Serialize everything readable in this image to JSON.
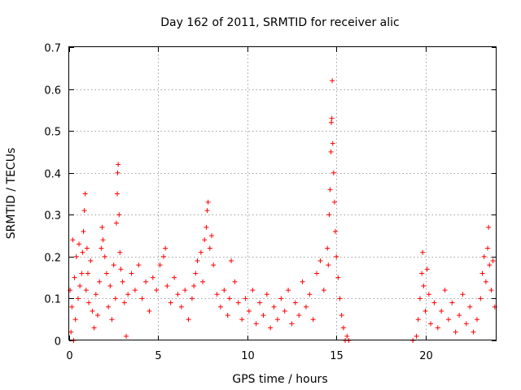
{
  "chart_data": {
    "type": "scatter",
    "title": "Day 162 of 2011, SRMTID for receiver alic",
    "xlabel": "GPS time / hours",
    "ylabel": "SRMTID / TECUs",
    "xlim": [
      0,
      24
    ],
    "ylim": [
      0,
      0.7
    ],
    "xticks": [
      0,
      5,
      10,
      15,
      20
    ],
    "yticks": [
      0,
      0.1,
      0.2,
      0.3,
      0.4,
      0.5,
      0.6,
      0.7
    ],
    "xtick_labels": [
      "0",
      "5",
      "10",
      "15",
      "20"
    ],
    "ytick_labels": [
      "0",
      "0.1",
      "0.2",
      "0.3",
      "0.4",
      "0.5",
      "0.6",
      "0.7"
    ],
    "grid": true,
    "marker": "+",
    "color": "#ff0000",
    "series": [
      {
        "name": "SRMTID",
        "points": [
          [
            0.05,
            0.12
          ],
          [
            0.1,
            0.02
          ],
          [
            0.15,
            0.08
          ],
          [
            0.2,
            0.24
          ],
          [
            0.25,
            0.0
          ],
          [
            0.3,
            0.15
          ],
          [
            0.35,
            0.05
          ],
          [
            0.4,
            0.2
          ],
          [
            0.5,
            0.1
          ],
          [
            0.55,
            0.23
          ],
          [
            0.6,
            0.13
          ],
          [
            0.7,
            0.16
          ],
          [
            0.75,
            0.21
          ],
          [
            0.8,
            0.26
          ],
          [
            0.85,
            0.31
          ],
          [
            0.9,
            0.35
          ],
          [
            0.95,
            0.12
          ],
          [
            1.0,
            0.22
          ],
          [
            1.05,
            0.16
          ],
          [
            1.1,
            0.09
          ],
          [
            1.2,
            0.19
          ],
          [
            1.3,
            0.07
          ],
          [
            1.4,
            0.03
          ],
          [
            1.5,
            0.11
          ],
          [
            1.6,
            0.06
          ],
          [
            1.7,
            0.14
          ],
          [
            1.8,
            0.22
          ],
          [
            1.85,
            0.27
          ],
          [
            1.9,
            0.24
          ],
          [
            2.0,
            0.2
          ],
          [
            2.1,
            0.16
          ],
          [
            2.2,
            0.08
          ],
          [
            2.3,
            0.13
          ],
          [
            2.4,
            0.05
          ],
          [
            2.5,
            0.18
          ],
          [
            2.6,
            0.1
          ],
          [
            2.65,
            0.28
          ],
          [
            2.7,
            0.35
          ],
          [
            2.72,
            0.4
          ],
          [
            2.75,
            0.42
          ],
          [
            2.8,
            0.3
          ],
          [
            2.85,
            0.21
          ],
          [
            2.9,
            0.17
          ],
          [
            3.0,
            0.14
          ],
          [
            3.1,
            0.09
          ],
          [
            3.2,
            0.01
          ],
          [
            3.3,
            0.11
          ],
          [
            3.5,
            0.16
          ],
          [
            3.7,
            0.12
          ],
          [
            3.9,
            0.18
          ],
          [
            4.1,
            0.1
          ],
          [
            4.3,
            0.14
          ],
          [
            4.5,
            0.07
          ],
          [
            4.7,
            0.15
          ],
          [
            4.9,
            0.12
          ],
          [
            5.1,
            0.18
          ],
          [
            5.3,
            0.2
          ],
          [
            5.4,
            0.22
          ],
          [
            5.5,
            0.13
          ],
          [
            5.7,
            0.09
          ],
          [
            5.9,
            0.15
          ],
          [
            6.1,
            0.11
          ],
          [
            6.3,
            0.08
          ],
          [
            6.5,
            0.12
          ],
          [
            6.7,
            0.05
          ],
          [
            6.9,
            0.1
          ],
          [
            7.0,
            0.13
          ],
          [
            7.1,
            0.16
          ],
          [
            7.2,
            0.19
          ],
          [
            7.4,
            0.21
          ],
          [
            7.5,
            0.14
          ],
          [
            7.6,
            0.24
          ],
          [
            7.7,
            0.27
          ],
          [
            7.75,
            0.31
          ],
          [
            7.8,
            0.33
          ],
          [
            7.9,
            0.22
          ],
          [
            8.0,
            0.25
          ],
          [
            8.1,
            0.18
          ],
          [
            8.3,
            0.11
          ],
          [
            8.5,
            0.08
          ],
          [
            8.7,
            0.12
          ],
          [
            8.9,
            0.06
          ],
          [
            9.0,
            0.1
          ],
          [
            9.1,
            0.19
          ],
          [
            9.3,
            0.14
          ],
          [
            9.5,
            0.09
          ],
          [
            9.7,
            0.05
          ],
          [
            9.9,
            0.1
          ],
          [
            10.1,
            0.07
          ],
          [
            10.3,
            0.12
          ],
          [
            10.5,
            0.04
          ],
          [
            10.7,
            0.09
          ],
          [
            10.9,
            0.06
          ],
          [
            11.1,
            0.11
          ],
          [
            11.3,
            0.03
          ],
          [
            11.5,
            0.08
          ],
          [
            11.7,
            0.05
          ],
          [
            11.9,
            0.1
          ],
          [
            12.1,
            0.07
          ],
          [
            12.3,
            0.12
          ],
          [
            12.5,
            0.04
          ],
          [
            12.7,
            0.09
          ],
          [
            12.9,
            0.06
          ],
          [
            13.1,
            0.14
          ],
          [
            13.3,
            0.08
          ],
          [
            13.5,
            0.11
          ],
          [
            13.7,
            0.05
          ],
          [
            13.9,
            0.16
          ],
          [
            14.1,
            0.19
          ],
          [
            14.3,
            0.12
          ],
          [
            14.5,
            0.22
          ],
          [
            14.55,
            0.18
          ],
          [
            14.6,
            0.3
          ],
          [
            14.65,
            0.36
          ],
          [
            14.7,
            0.45
          ],
          [
            14.72,
            0.52
          ],
          [
            14.75,
            0.53
          ],
          [
            14.77,
            0.62
          ],
          [
            14.8,
            0.47
          ],
          [
            14.85,
            0.4
          ],
          [
            14.9,
            0.33
          ],
          [
            14.95,
            0.26
          ],
          [
            15.0,
            0.2
          ],
          [
            15.1,
            0.15
          ],
          [
            15.2,
            0.1
          ],
          [
            15.3,
            0.06
          ],
          [
            15.4,
            0.03
          ],
          [
            15.5,
            0.0
          ],
          [
            15.6,
            0.01
          ],
          [
            15.7,
            0.0
          ],
          [
            19.3,
            0.0
          ],
          [
            19.5,
            0.01
          ],
          [
            19.6,
            0.05
          ],
          [
            19.7,
            0.1
          ],
          [
            19.8,
            0.16
          ],
          [
            19.85,
            0.21
          ],
          [
            19.9,
            0.13
          ],
          [
            20.0,
            0.07
          ],
          [
            20.1,
            0.17
          ],
          [
            20.2,
            0.11
          ],
          [
            20.3,
            0.04
          ],
          [
            20.5,
            0.09
          ],
          [
            20.7,
            0.03
          ],
          [
            20.9,
            0.07
          ],
          [
            21.1,
            0.12
          ],
          [
            21.3,
            0.05
          ],
          [
            21.5,
            0.09
          ],
          [
            21.7,
            0.02
          ],
          [
            21.9,
            0.06
          ],
          [
            22.1,
            0.11
          ],
          [
            22.3,
            0.04
          ],
          [
            22.5,
            0.08
          ],
          [
            22.7,
            0.02
          ],
          [
            22.9,
            0.05
          ],
          [
            23.1,
            0.1
          ],
          [
            23.2,
            0.16
          ],
          [
            23.3,
            0.2
          ],
          [
            23.4,
            0.14
          ],
          [
            23.5,
            0.22
          ],
          [
            23.55,
            0.27
          ],
          [
            23.6,
            0.18
          ],
          [
            23.7,
            0.12
          ],
          [
            23.8,
            0.19
          ],
          [
            23.9,
            0.08
          ]
        ]
      }
    ]
  }
}
